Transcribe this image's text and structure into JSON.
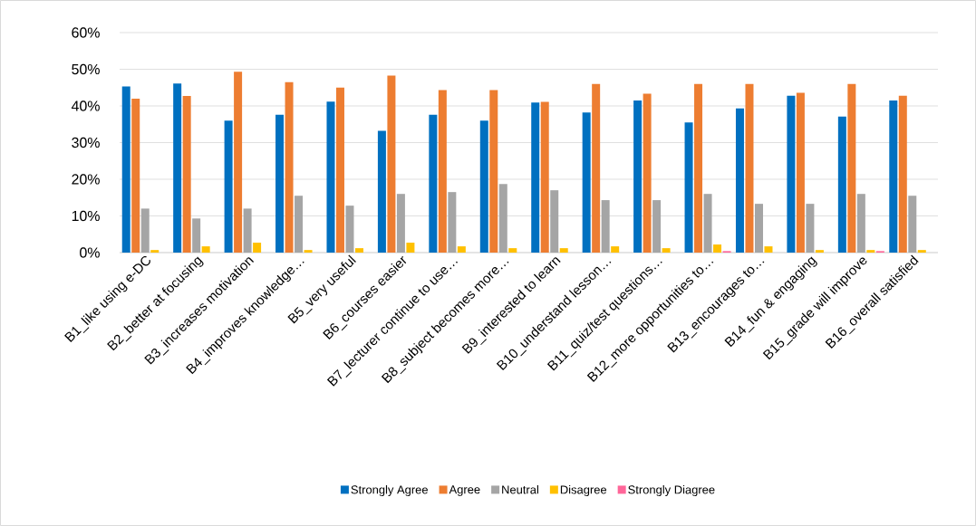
{
  "chart_data": {
    "type": "bar",
    "categories": [
      "B1_like using e-DC",
      "B2_better at focusing",
      "B3_increases motivation",
      "B4_improves knowledge…",
      "B5_very useful",
      "B6_courses easier",
      "B7_lecturer continue to use…",
      "B8_subject becomes more…",
      "B9_interested to learn",
      "B10_understand lesson…",
      "B11_quiz/test questions…",
      "B12_more opportunities to…",
      "B13_encourages to…",
      "B14_fun & engaging",
      "B15_grade will improve",
      "B16_overall satisfied"
    ],
    "series": [
      {
        "name": "Strongly Agree",
        "color": "#0070c0",
        "values": [
          45.3,
          46.1,
          36,
          37.6,
          41.2,
          33.2,
          37.6,
          36,
          40.9,
          38.2,
          41.5,
          35.5,
          39.3,
          42.8,
          37.1,
          41.5
        ]
      },
      {
        "name": "Agree",
        "color": "#ed7d31",
        "values": [
          42,
          42.7,
          49.3,
          46.5,
          45,
          48.3,
          44.3,
          44.3,
          41.1,
          46,
          43.3,
          46,
          46,
          43.6,
          46,
          42.8
        ]
      },
      {
        "name": "Neutral",
        "color": "#a5a5a5",
        "values": [
          12,
          9.3,
          12,
          15.5,
          12.8,
          16,
          16.5,
          18.7,
          17,
          14.3,
          14.3,
          16,
          13.3,
          13.3,
          16,
          15.5
        ]
      },
      {
        "name": "Disagree",
        "color": "#ffc000",
        "values": [
          0.7,
          1.7,
          2.7,
          0.7,
          1.2,
          2.7,
          1.7,
          1.2,
          1.2,
          1.7,
          1.2,
          2.2,
          1.7,
          0.7,
          0.7,
          0.7
        ]
      },
      {
        "name": "Strongly Diagree",
        "color": "#ff6699",
        "values": [
          0,
          0,
          0,
          0,
          0,
          0,
          0,
          0,
          0,
          0,
          0,
          0.4,
          0,
          0,
          0.4,
          0
        ]
      }
    ],
    "ylim": [
      0,
      60
    ],
    "yticks": [
      {
        "value": 0,
        "label": "0%"
      },
      {
        "value": 10,
        "label": "10%"
      },
      {
        "value": 20,
        "label": "20%"
      },
      {
        "value": 30,
        "label": "30%"
      },
      {
        "value": 40,
        "label": "40%"
      },
      {
        "value": 50,
        "label": "50%"
      },
      {
        "value": 60,
        "label": "60%"
      }
    ],
    "grid": "y",
    "legend": "bottom"
  }
}
